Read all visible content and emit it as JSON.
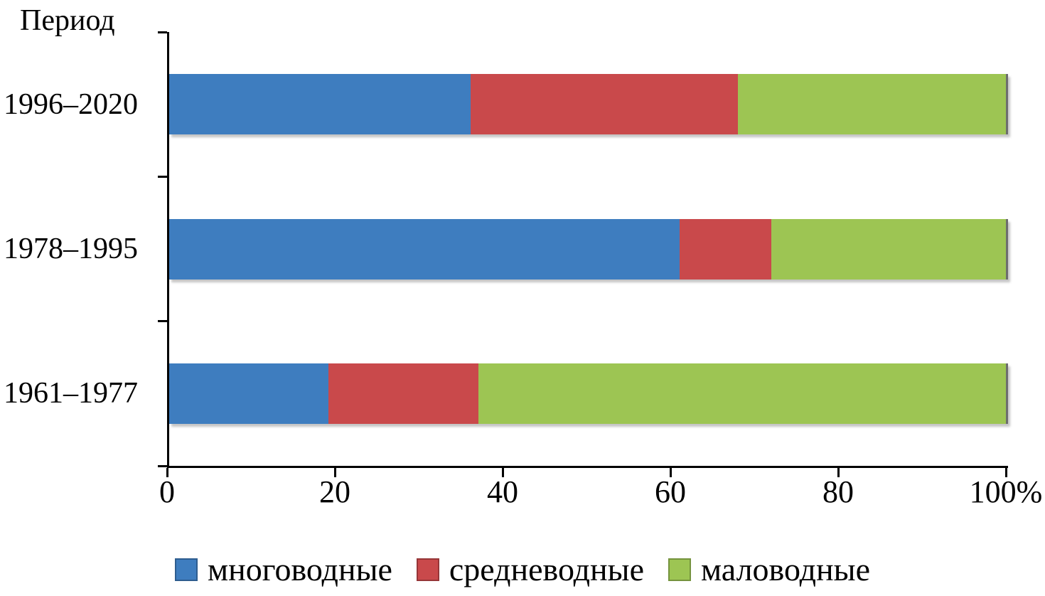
{
  "title": "Период",
  "chart_data": {
    "type": "bar",
    "orientation": "horizontal",
    "stacked": true,
    "title": "Период",
    "categories": [
      "1996–2020",
      "1978–1995",
      "1961–1977"
    ],
    "series": [
      {
        "name": "многоводные",
        "color": "#3e7dbf",
        "values": [
          36,
          61,
          19
        ]
      },
      {
        "name": "средневодные",
        "color": "#c9494b",
        "values": [
          32,
          11,
          18
        ]
      },
      {
        "name": "маловодные",
        "color": "#9dc553",
        "values": [
          32,
          28,
          63
        ]
      }
    ],
    "xlabel": "",
    "ylabel": "Период",
    "xlim": [
      0,
      100
    ],
    "xtick_values": [
      0,
      20,
      40,
      60,
      80,
      100
    ],
    "xtick_labels": [
      "0",
      "20",
      "40",
      "60",
      "80",
      "100%"
    ],
    "grid": false,
    "legend_position": "bottom"
  }
}
